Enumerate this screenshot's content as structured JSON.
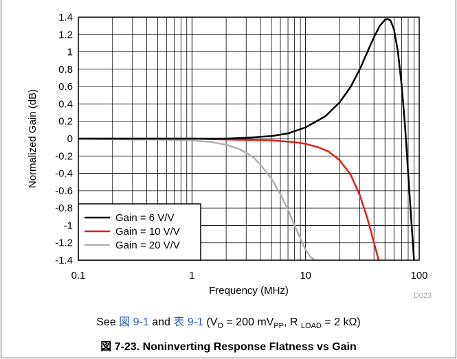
{
  "chart_data": {
    "type": "line",
    "title": "",
    "xlabel": "Frequency (MHz)",
    "ylabel": "Normalized Gain (dB)",
    "xscale": "log",
    "xlim": [
      0.1,
      100
    ],
    "ylim": [
      -1.4,
      1.4
    ],
    "grid": true,
    "legend_position": "bottom-left",
    "x_tick_labels": [
      "0.1",
      "1",
      "10",
      "100"
    ],
    "y_tick_labels": [
      "1.4",
      "1.2",
      "1",
      "0.8",
      "0.6",
      "0.4",
      "0.2",
      "0",
      "-0.2",
      "-0.4",
      "-0.6",
      "-0.8",
      "-1",
      "-1.2",
      "-1.4"
    ],
    "series": [
      {
        "name": "Gain = 6 V/V",
        "color": "#000000",
        "x": [
          0.1,
          0.3,
          1,
          2,
          3,
          5,
          7,
          10,
          15,
          20,
          25,
          30,
          35,
          40,
          45,
          50,
          53,
          56,
          60,
          65,
          70,
          75,
          80,
          85,
          90
        ],
        "y": [
          0,
          0,
          0,
          0,
          0.01,
          0.03,
          0.06,
          0.13,
          0.26,
          0.42,
          0.6,
          0.8,
          1.0,
          1.17,
          1.3,
          1.37,
          1.38,
          1.36,
          1.26,
          1.0,
          0.62,
          0.15,
          -0.4,
          -0.92,
          -1.4
        ]
      },
      {
        "name": "Gain = 10 V/V",
        "color": "#e0201b",
        "x": [
          0.1,
          0.5,
          1,
          2,
          5,
          8,
          10,
          13,
          16,
          20,
          25,
          30,
          35,
          40,
          44
        ],
        "y": [
          0,
          0,
          0,
          -0.01,
          -0.02,
          -0.04,
          -0.06,
          -0.1,
          -0.15,
          -0.25,
          -0.42,
          -0.65,
          -0.92,
          -1.2,
          -1.4
        ]
      },
      {
        "name": "Gain = 20 V/V",
        "color": "#b0b0b0",
        "x": [
          0.1,
          0.3,
          0.5,
          0.8,
          1,
          1.5,
          2,
          2.5,
          3,
          3.5,
          4,
          5,
          6,
          7,
          8,
          9,
          10,
          11,
          12
        ],
        "y": [
          0,
          -0.01,
          -0.01,
          -0.02,
          -0.02,
          -0.04,
          -0.07,
          -0.11,
          -0.16,
          -0.22,
          -0.3,
          -0.46,
          -0.64,
          -0.82,
          -1.0,
          -1.15,
          -1.28,
          -1.36,
          -1.4
        ]
      }
    ],
    "watermark": "D023"
  },
  "note": {
    "prefix": "See ",
    "fig_link": "図 9-1",
    "and": " and ",
    "table_link": "表 9-1",
    "paren_open": " (V",
    "vo_sub": "O",
    "eq1": " = 200 mV",
    "pp_sub": "PP",
    "sep": ", R ",
    "load_sub": "LOAD",
    "eq2": " = 2 kΩ)"
  },
  "figure_title": "図 7-23. Noninverting Response Flatness vs Gain"
}
